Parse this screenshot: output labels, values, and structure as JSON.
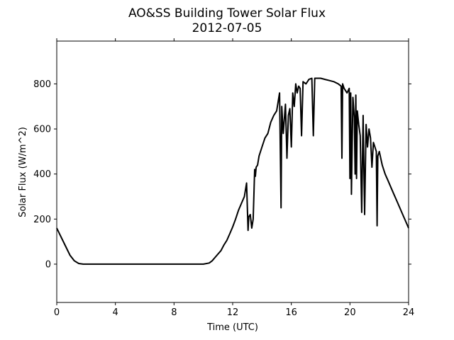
{
  "chart_data": {
    "type": "line",
    "title": "AO&SS Building Tower Solar Flux",
    "subtitle": "2012-07-05",
    "xlabel": "Time (UTC)",
    "ylabel": "Solar Flux (W/m^2)",
    "xlim": [
      0,
      24
    ],
    "ylim": [
      -170,
      990
    ],
    "xticks": [
      "0",
      "4",
      "8",
      "12",
      "16",
      "20",
      "24"
    ],
    "yticks": [
      "0",
      "200",
      "400",
      "600",
      "800"
    ],
    "grid": false,
    "line_color": "#000000",
    "series": [
      {
        "x": [
          0,
          0.3,
          0.6,
          0.9,
          1.2,
          1.5,
          1.8,
          2.1,
          2.5,
          4,
          6,
          8,
          10,
          10.4,
          10.6,
          10.8,
          11.0,
          11.2,
          11.4,
          11.6,
          11.8,
          12.0,
          12.2,
          12.4,
          12.6,
          12.8,
          12.95,
          13.05,
          13.1,
          13.2,
          13.3,
          13.4,
          13.5,
          13.55,
          13.6,
          13.7,
          13.8,
          14.0,
          14.2,
          14.4,
          14.6,
          14.8,
          15.0,
          15.2,
          15.3,
          15.35,
          15.45,
          15.6,
          15.7,
          15.8,
          15.9,
          16.0,
          16.1,
          16.2,
          16.3,
          16.4,
          16.5,
          16.6,
          16.7,
          16.8,
          17.0,
          17.2,
          17.4,
          17.5,
          17.6,
          17.8,
          18.0,
          18.3,
          18.6,
          18.9,
          19.2,
          19.4,
          19.45,
          19.5,
          19.6,
          19.8,
          19.95,
          20.0,
          20.05,
          20.1,
          20.2,
          20.3,
          20.35,
          20.4,
          20.45,
          20.5,
          20.6,
          20.7,
          20.8,
          20.9,
          21.0,
          21.1,
          21.2,
          21.3,
          21.4,
          21.5,
          21.6,
          21.7,
          21.8,
          21.85,
          21.9,
          22.0,
          22.2,
          22.4,
          22.6,
          22.8,
          23.0,
          23.2,
          23.4,
          23.6,
          23.8,
          24.0
        ],
        "y": [
          160,
          120,
          80,
          40,
          15,
          3,
          0,
          0,
          0,
          0,
          0,
          0,
          0,
          5,
          15,
          30,
          45,
          60,
          85,
          105,
          135,
          165,
          200,
          240,
          270,
          300,
          360,
          150,
          210,
          220,
          160,
          200,
          420,
          390,
          430,
          440,
          480,
          520,
          560,
          580,
          630,
          660,
          680,
          760,
          250,
          700,
          580,
          710,
          470,
          660,
          690,
          520,
          760,
          700,
          800,
          760,
          790,
          780,
          570,
          810,
          800,
          820,
          825,
          570,
          825,
          825,
          825,
          820,
          815,
          810,
          800,
          790,
          470,
          800,
          780,
          760,
          780,
          380,
          760,
          310,
          740,
          650,
          400,
          750,
          380,
          680,
          620,
          570,
          230,
          660,
          220,
          620,
          520,
          600,
          560,
          430,
          540,
          520,
          500,
          170,
          480,
          500,
          440,
          400,
          370,
          340,
          310,
          280,
          250,
          220,
          190,
          160
        ]
      }
    ]
  }
}
